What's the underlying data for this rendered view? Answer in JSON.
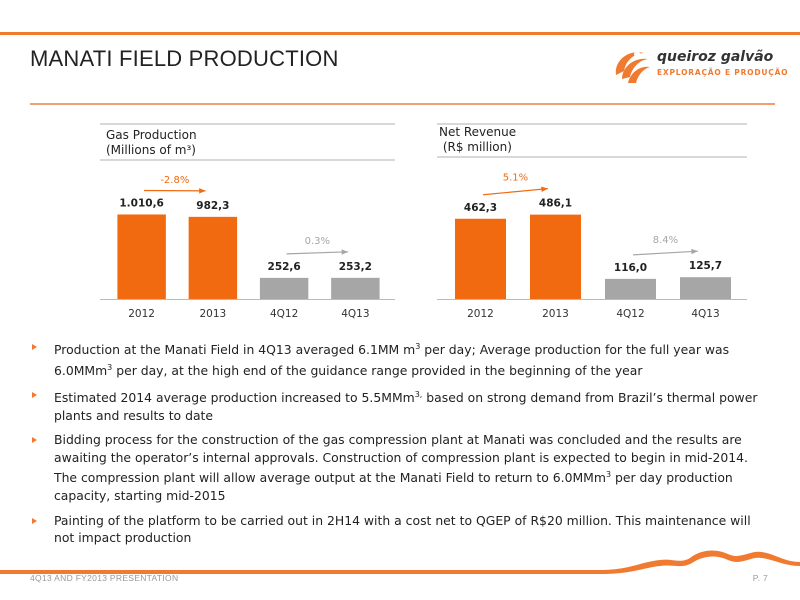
{
  "header": {
    "title": "MANATI FIELD PRODUCTION",
    "accent_color": "#f07a30"
  },
  "logo": {
    "name": "queiroz galvão",
    "tagline": "EXPLORAÇÃO E PRODUÇÃO"
  },
  "chart_data": [
    {
      "type": "bar",
      "title": "Gas Production\n(Millions of m³)",
      "categories": [
        "2012",
        "2013",
        "4Q12",
        "4Q13"
      ],
      "values": [
        1010.6,
        982.3,
        252.6,
        253.2
      ],
      "value_labels": [
        "1.010,6",
        "982,3",
        "252,6",
        "253,2"
      ],
      "colors": [
        "#f26a10",
        "#f26a10",
        "#a6a6a6",
        "#a6a6a6"
      ],
      "annotations": [
        {
          "label": "-2.8%",
          "from": 0,
          "to": 1,
          "color": "#f26a10"
        },
        {
          "label": "0.3%",
          "from": 2,
          "to": 3,
          "color": "#a6a6a6"
        }
      ],
      "ylim": [
        0,
        1100
      ]
    },
    {
      "type": "bar",
      "title": "Net Revenue\n (R$ million)",
      "categories": [
        "2012",
        "2013",
        "4Q12",
        "4Q13"
      ],
      "values": [
        462.3,
        486.1,
        116.0,
        125.7
      ],
      "value_labels": [
        "462,3",
        "486,1",
        "116,0",
        "125,7"
      ],
      "colors": [
        "#f26a10",
        "#f26a10",
        "#a6a6a6",
        "#a6a6a6"
      ],
      "annotations": [
        {
          "label": "5.1%",
          "from": 0,
          "to": 1,
          "color": "#f26a10"
        },
        {
          "label": "8.4%",
          "from": 2,
          "to": 3,
          "color": "#a6a6a6"
        }
      ],
      "ylim": [
        0,
        530
      ]
    }
  ],
  "bullets": [
    {
      "pre": "Production at the Manati Field in 4Q13 averaged 6.1MM m",
      "sup": "3",
      "post": " per day; Average production for the full year was 6.0MMm",
      "sup2": "3",
      "post2": " per day, at the high end of the guidance range provided in the beginning of the year"
    },
    {
      "pre": "Estimated 2014 average production increased to 5.5MMm",
      "sup": "3,",
      "post": " based on strong demand from Brazil’s thermal power plants and results to date",
      "sup2": "",
      "post2": ""
    },
    {
      "pre": "Bidding process for the construction of the gas compression plant at Manati was concluded and the results are awaiting the operator’s internal approvals. Construction of compression plant is expected to begin in mid-2014. The compression plant will allow average output at the Manati Field to return to 6.0MMm",
      "sup": "3",
      "post": " per day production capacity, starting mid-2015",
      "sup2": "",
      "post2": ""
    },
    {
      "pre": "Painting of the platform to be carried out in 2H14 with a cost net to QGEP of R$20 million.  This maintenance will not impact production",
      "sup": "",
      "post": "",
      "sup2": "",
      "post2": ""
    }
  ],
  "footer": {
    "presentation": "4Q13 AND FY2013 PRESENTATION",
    "page": "P. 7"
  }
}
